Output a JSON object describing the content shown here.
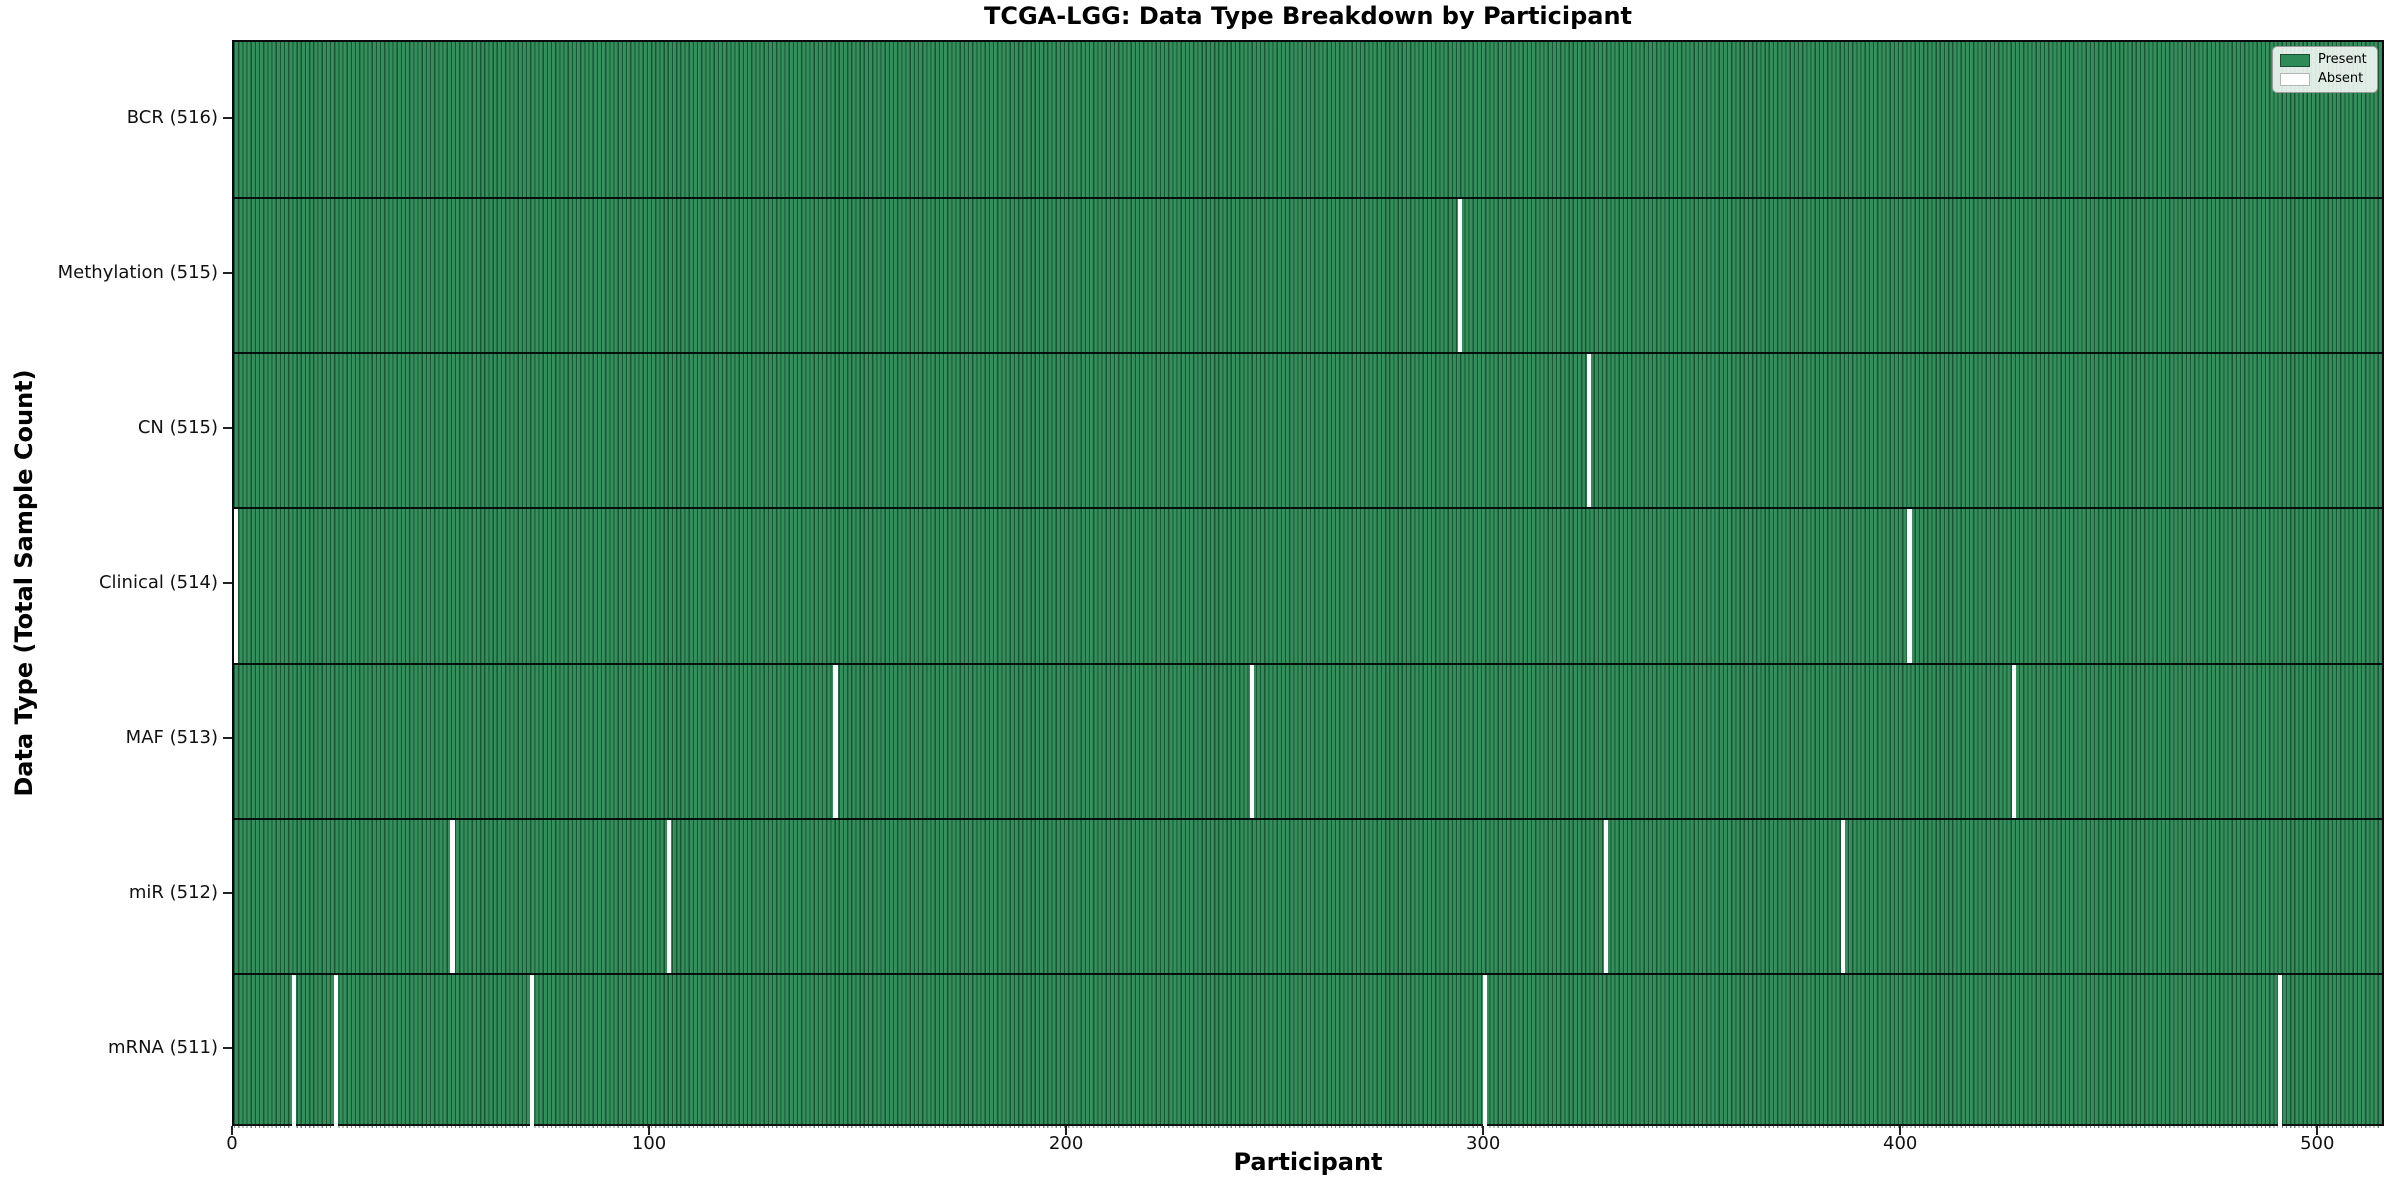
{
  "chart_data": {
    "type": "heatmap",
    "title": "TCGA-LGG: Data Type Breakdown by Participant",
    "xlabel": "Participant",
    "ylabel": "Data Type (Total Sample Count)",
    "xlim": [
      0,
      516
    ],
    "total_participants": 516,
    "x_ticks": [
      {
        "value": 0,
        "label": "0"
      },
      {
        "value": 100,
        "label": "100"
      },
      {
        "value": 200,
        "label": "200"
      },
      {
        "value": 300,
        "label": "300"
      },
      {
        "value": 400,
        "label": "400"
      },
      {
        "value": 500,
        "label": "500"
      }
    ],
    "colors": {
      "present": "#2e8b57",
      "absent": "#ffffff",
      "bar_edge": "#0a2818",
      "row_divider": "#000000",
      "background": "#ffffff"
    },
    "legend": {
      "position": "upper right",
      "entries": [
        {
          "label": "Present",
          "color": "#2e8b57"
        },
        {
          "label": "Absent",
          "color": "#ffffff"
        }
      ]
    },
    "rows": [
      {
        "label": "BCR (516)",
        "data_type": "BCR",
        "present_count": 516,
        "absent_participants": []
      },
      {
        "label": "Methylation (515)",
        "data_type": "Methylation",
        "present_count": 515,
        "absent_participants": [
          294
        ]
      },
      {
        "label": "CN (515)",
        "data_type": "CN",
        "present_count": 515,
        "absent_participants": [
          325
        ]
      },
      {
        "label": "Clinical (514)",
        "data_type": "Clinical",
        "present_count": 514,
        "absent_participants": [
          0,
          402
        ]
      },
      {
        "label": "MAF (513)",
        "data_type": "MAF",
        "present_count": 513,
        "absent_participants": [
          144,
          244,
          427
        ]
      },
      {
        "label": "miR (512)",
        "data_type": "miR",
        "present_count": 512,
        "absent_participants": [
          52,
          104,
          329,
          386
        ]
      },
      {
        "label": "mRNA (511)",
        "data_type": "mRNA",
        "present_count": 511,
        "absent_participants": [
          14,
          24,
          71,
          300,
          491
        ]
      }
    ]
  }
}
